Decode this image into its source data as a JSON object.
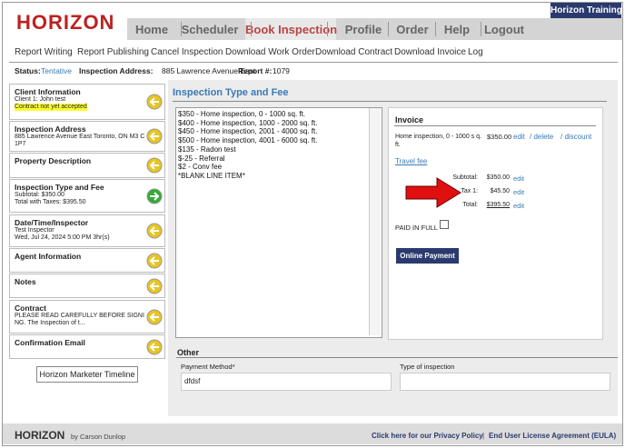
{
  "header": {
    "logo": "HORIZON",
    "training_tab": "Horizon Training",
    "nav": [
      "Home",
      "Scheduler",
      "Book Inspection",
      "Profile",
      "Order",
      "Help",
      "Logout"
    ]
  },
  "submenu": [
    "Report Writing",
    "Report Publishing",
    "Cancel Inspection",
    "Download Work Order",
    "Download Contract",
    "Download Invoice",
    "Log"
  ],
  "status": {
    "status_label": "Status:",
    "status": "Tentative",
    "address_label": "Inspection Address:",
    "address": "885 Lawrence Avenue East",
    "report_label": "Report #:",
    "report": "1079"
  },
  "sidebar": {
    "panels": [
      {
        "title": "Client Information",
        "lines": [
          "Client 1: John test",
          "Contract not yet accepted"
        ]
      },
      {
        "title": "Inspection Address",
        "lines": [
          "885 Lawrence Avenue East  Toronto, ON  M3 C 1P7"
        ]
      },
      {
        "title": "Property Description",
        "lines": []
      },
      {
        "title": "Inspection Type and Fee",
        "lines": [
          "Subtotal: $350.00",
          "Total with Taxes: $395.50"
        ]
      },
      {
        "title": "Date/Time/Inspector",
        "lines": [
          "Test Inspector",
          "Wed, Jul 24, 2024 5:00 PM 3hr(s)"
        ]
      },
      {
        "title": "Agent Information",
        "lines": []
      },
      {
        "title": "Notes",
        "lines": []
      },
      {
        "title": "Contract",
        "lines": [
          "PLEASE READ CAREFULLY BEFORE SIGNI NG. The Inspection of t..."
        ]
      },
      {
        "title": "Confirmation Email",
        "lines": []
      }
    ],
    "button": "Horizon Marketer Timeline"
  },
  "main": {
    "title": "Inspection Type and Fee",
    "options": [
      "$350 - Home inspection, 0 - 1000 sq. ft.",
      "$400 - Home inspection, 1000 - 2000 sq. ft.",
      "$450 - Home inspection, 2001 - 4000 sq. ft.",
      "$500 - Home inspection, 4001 - 6000 sq. ft.",
      "$135 - Radon test",
      "$-25 - Referral",
      "$2 - Conv fee",
      "*BLANK LINE ITEM*"
    ],
    "invoice": {
      "title": "Invoice",
      "item": "Home inspection, 0 - 1000 s q. ft.",
      "item_amount": "$350.00",
      "item_links": [
        "edit",
        "/ delete",
        "/ discount"
      ],
      "travel_fee": "Travel fee",
      "totals": [
        {
          "label": "Subtotal:",
          "amount": "$350.00",
          "link": "edit"
        },
        {
          "label": "Tax 1:",
          "amount": "$45.50",
          "link": "edit"
        },
        {
          "label": "Total:",
          "amount": "$395.50",
          "link": "edit"
        }
      ],
      "paid_in_full": "PAID IN FULL",
      "pay_button": "Online Payment"
    },
    "other": {
      "title": "Other",
      "fields": [
        {
          "label": "Payment Method*",
          "value": "dfdsf"
        },
        {
          "label": "Type of inspection",
          "value": ""
        }
      ]
    }
  },
  "footer": {
    "logo": "HORIZON",
    "by": "by Carson Dunlop",
    "privacy": "Click here for our Privacy Policy",
    "separator": "|",
    "eula": "End User License Agreement (EULA)"
  }
}
